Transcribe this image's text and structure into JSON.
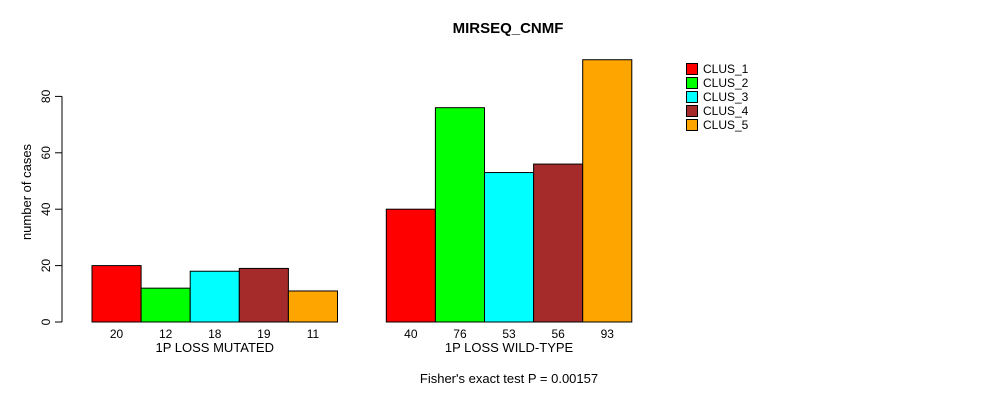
{
  "title": "MIRSEQ_CNMF",
  "chart_data": {
    "type": "bar",
    "title": "MIRSEQ_CNMF",
    "xlabel": "",
    "ylabel": "number of cases",
    "ylim": [
      0,
      95
    ],
    "yticks": [
      0,
      20,
      40,
      60,
      80
    ],
    "grid": false,
    "legend_position": "right",
    "value_labels_shown": true,
    "categories": [
      "1P LOSS MUTATED",
      "1P LOSS WILD-TYPE"
    ],
    "series": [
      {
        "name": "CLUS_1",
        "color": "#FF0000",
        "values": [
          20,
          40
        ]
      },
      {
        "name": "CLUS_2",
        "color": "#00FF00",
        "values": [
          12,
          76
        ]
      },
      {
        "name": "CLUS_3",
        "color": "#00FFFF",
        "values": [
          18,
          53
        ]
      },
      {
        "name": "CLUS_4",
        "color": "#A52A2A",
        "values": [
          19,
          56
        ]
      },
      {
        "name": "CLUS_5",
        "color": "#FFA500",
        "values": [
          11,
          93
        ]
      }
    ],
    "annotation": "Fisher's exact test P = 0.00157"
  }
}
